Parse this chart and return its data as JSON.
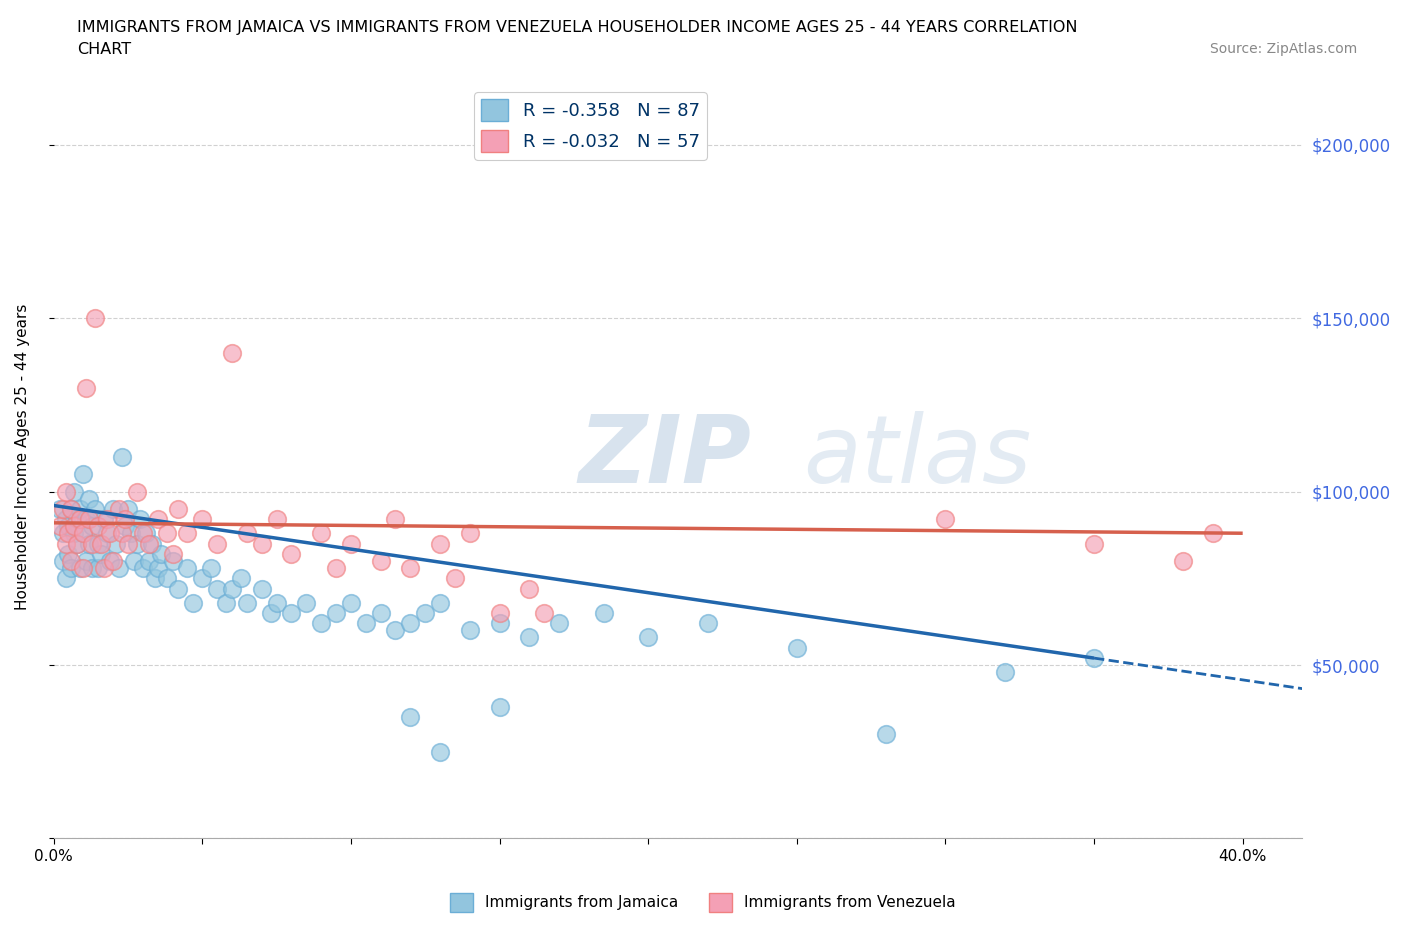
{
  "title_line1": "IMMIGRANTS FROM JAMAICA VS IMMIGRANTS FROM VENEZUELA HOUSEHOLDER INCOME AGES 25 - 44 YEARS CORRELATION",
  "title_line2": "CHART",
  "source": "Source: ZipAtlas.com",
  "ylabel": "Householder Income Ages 25 - 44 years",
  "xlim": [
    0.0,
    0.42
  ],
  "ylim": [
    0,
    220000
  ],
  "yticks": [
    0,
    50000,
    100000,
    150000,
    200000
  ],
  "ytick_labels": [
    "",
    "$50,000",
    "$100,000",
    "$150,000",
    "$200,000"
  ],
  "xticks": [
    0.0,
    0.05,
    0.1,
    0.15,
    0.2,
    0.25,
    0.3,
    0.35,
    0.4
  ],
  "jamaica_color": "#92c5de",
  "venezuela_color": "#f4a0b5",
  "jamaica_edge": "#6baed6",
  "venezuela_edge": "#f08080",
  "jamaica_R": -0.358,
  "jamaica_N": 87,
  "venezuela_R": -0.032,
  "venezuela_N": 57,
  "jamaica_line_color": "#2166ac",
  "venezuela_line_color": "#d6604d",
  "legend_label_color": "#003366",
  "ytick_color": "#4169e1",
  "watermark_zip": "ZIP",
  "watermark_atlas": "atlas",
  "jamaica_scatter": [
    [
      0.002,
      95000
    ],
    [
      0.003,
      88000
    ],
    [
      0.003,
      80000
    ],
    [
      0.004,
      92000
    ],
    [
      0.004,
      75000
    ],
    [
      0.005,
      90000
    ],
    [
      0.005,
      82000
    ],
    [
      0.006,
      95000
    ],
    [
      0.006,
      78000
    ],
    [
      0.007,
      100000
    ],
    [
      0.007,
      88000
    ],
    [
      0.008,
      85000
    ],
    [
      0.008,
      92000
    ],
    [
      0.009,
      78000
    ],
    [
      0.009,
      95000
    ],
    [
      0.01,
      105000
    ],
    [
      0.01,
      88000
    ],
    [
      0.011,
      92000
    ],
    [
      0.011,
      80000
    ],
    [
      0.012,
      98000
    ],
    [
      0.012,
      85000
    ],
    [
      0.013,
      90000
    ],
    [
      0.013,
      78000
    ],
    [
      0.014,
      95000
    ],
    [
      0.015,
      85000
    ],
    [
      0.015,
      78000
    ],
    [
      0.016,
      82000
    ],
    [
      0.017,
      92000
    ],
    [
      0.018,
      88000
    ],
    [
      0.019,
      80000
    ],
    [
      0.02,
      95000
    ],
    [
      0.021,
      85000
    ],
    [
      0.022,
      78000
    ],
    [
      0.023,
      110000
    ],
    [
      0.024,
      90000
    ],
    [
      0.025,
      95000
    ],
    [
      0.026,
      88000
    ],
    [
      0.027,
      80000
    ],
    [
      0.028,
      85000
    ],
    [
      0.029,
      92000
    ],
    [
      0.03,
      78000
    ],
    [
      0.031,
      88000
    ],
    [
      0.032,
      80000
    ],
    [
      0.033,
      85000
    ],
    [
      0.034,
      75000
    ],
    [
      0.035,
      78000
    ],
    [
      0.036,
      82000
    ],
    [
      0.038,
      75000
    ],
    [
      0.04,
      80000
    ],
    [
      0.042,
      72000
    ],
    [
      0.045,
      78000
    ],
    [
      0.047,
      68000
    ],
    [
      0.05,
      75000
    ],
    [
      0.053,
      78000
    ],
    [
      0.055,
      72000
    ],
    [
      0.058,
      68000
    ],
    [
      0.06,
      72000
    ],
    [
      0.063,
      75000
    ],
    [
      0.065,
      68000
    ],
    [
      0.07,
      72000
    ],
    [
      0.073,
      65000
    ],
    [
      0.075,
      68000
    ],
    [
      0.08,
      65000
    ],
    [
      0.085,
      68000
    ],
    [
      0.09,
      62000
    ],
    [
      0.095,
      65000
    ],
    [
      0.1,
      68000
    ],
    [
      0.105,
      62000
    ],
    [
      0.11,
      65000
    ],
    [
      0.115,
      60000
    ],
    [
      0.12,
      62000
    ],
    [
      0.125,
      65000
    ],
    [
      0.13,
      68000
    ],
    [
      0.14,
      60000
    ],
    [
      0.15,
      62000
    ],
    [
      0.16,
      58000
    ],
    [
      0.17,
      62000
    ],
    [
      0.185,
      65000
    ],
    [
      0.2,
      58000
    ],
    [
      0.22,
      62000
    ],
    [
      0.25,
      55000
    ],
    [
      0.28,
      30000
    ],
    [
      0.32,
      48000
    ],
    [
      0.35,
      52000
    ],
    [
      0.12,
      35000
    ],
    [
      0.13,
      25000
    ],
    [
      0.15,
      38000
    ]
  ],
  "venezuela_scatter": [
    [
      0.002,
      90000
    ],
    [
      0.003,
      95000
    ],
    [
      0.004,
      85000
    ],
    [
      0.004,
      100000
    ],
    [
      0.005,
      88000
    ],
    [
      0.006,
      95000
    ],
    [
      0.006,
      80000
    ],
    [
      0.007,
      90000
    ],
    [
      0.008,
      85000
    ],
    [
      0.009,
      92000
    ],
    [
      0.01,
      88000
    ],
    [
      0.01,
      78000
    ],
    [
      0.011,
      130000
    ],
    [
      0.012,
      92000
    ],
    [
      0.013,
      85000
    ],
    [
      0.014,
      150000
    ],
    [
      0.015,
      90000
    ],
    [
      0.016,
      85000
    ],
    [
      0.017,
      78000
    ],
    [
      0.018,
      92000
    ],
    [
      0.019,
      88000
    ],
    [
      0.02,
      80000
    ],
    [
      0.022,
      95000
    ],
    [
      0.023,
      88000
    ],
    [
      0.024,
      92000
    ],
    [
      0.025,
      85000
    ],
    [
      0.028,
      100000
    ],
    [
      0.03,
      88000
    ],
    [
      0.032,
      85000
    ],
    [
      0.035,
      92000
    ],
    [
      0.038,
      88000
    ],
    [
      0.04,
      82000
    ],
    [
      0.042,
      95000
    ],
    [
      0.045,
      88000
    ],
    [
      0.05,
      92000
    ],
    [
      0.055,
      85000
    ],
    [
      0.06,
      140000
    ],
    [
      0.065,
      88000
    ],
    [
      0.07,
      85000
    ],
    [
      0.075,
      92000
    ],
    [
      0.08,
      82000
    ],
    [
      0.09,
      88000
    ],
    [
      0.095,
      78000
    ],
    [
      0.1,
      85000
    ],
    [
      0.11,
      80000
    ],
    [
      0.115,
      92000
    ],
    [
      0.12,
      78000
    ],
    [
      0.13,
      85000
    ],
    [
      0.135,
      75000
    ],
    [
      0.14,
      88000
    ],
    [
      0.15,
      65000
    ],
    [
      0.16,
      72000
    ],
    [
      0.165,
      65000
    ],
    [
      0.3,
      92000
    ],
    [
      0.35,
      85000
    ],
    [
      0.38,
      80000
    ],
    [
      0.39,
      88000
    ]
  ],
  "jamaica_line_x": [
    0.0,
    0.35
  ],
  "jamaica_line_y": [
    96000,
    52000
  ],
  "venezuela_line_x": [
    0.0,
    0.4
  ],
  "venezuela_line_y": [
    91000,
    88000
  ]
}
